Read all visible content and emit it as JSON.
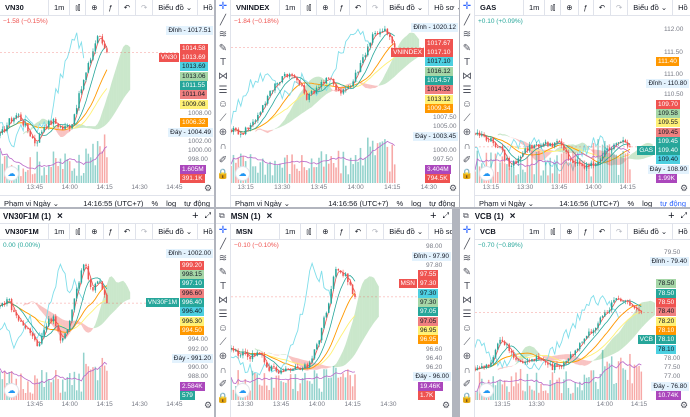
{
  "common": {
    "interval": "1m",
    "chart_menu": "Biểu đồ",
    "profile_menu": "Hồ sơ",
    "range_menu": "Phạm vi Ngày",
    "pct": "%",
    "log": "log",
    "auto": "tự động",
    "add": "+",
    "close": "×",
    "last_candle": "14:16"
  },
  "tools": [
    "crosshair",
    "trend-line",
    "fib",
    "brush",
    "text",
    "pattern",
    "measure",
    "emoji",
    "ruler",
    "zoom",
    "magnet",
    "pencil-lock",
    "lock"
  ],
  "colors": {
    "up": "#26a69a",
    "down": "#ef5350",
    "volume_ma": "#ba68c8"
  },
  "panels": [
    {
      "symbol": "VN30",
      "tab": null,
      "change": "−1.58 (−0.15%)",
      "change_color": "#ef5350",
      "range": [
        996.5,
        1019.5
      ],
      "t_start": "13:30",
      "t_end": "14:47",
      "path": [
        1003,
        1005,
        1006,
        1004,
        1002,
        1004.5,
        1005,
        1004,
        1004.5,
        1009,
        1013,
        1017,
        1014.5
      ],
      "labels": [
        {
          "v": 1017.51,
          "text": "1017.51",
          "kind": "hl",
          "pre": "Đỉnh"
        },
        {
          "v": 1014.58,
          "text": "1014.58",
          "bg": "#ef5350"
        },
        {
          "v": 1013.69,
          "text": "1013.69",
          "bg": "#ef5350",
          "tag": "VN30"
        },
        {
          "v": 1013.69,
          "text": "1013.69",
          "bg": "#4dd0e1"
        },
        {
          "v": 1013.06,
          "text": "1013.06",
          "bg": "#a5d6a7"
        },
        {
          "v": 1011.55,
          "text": "1011.55",
          "bg": "#26a69a"
        },
        {
          "v": 1011.04,
          "text": "1011.04",
          "bg": "#f08080"
        },
        {
          "v": 1009.08,
          "text": "1009.08",
          "bg": "#fff176"
        },
        {
          "v": 1008.0,
          "text": "1008.00",
          "kind": "axis"
        },
        {
          "v": 1006.32,
          "text": "1006.32",
          "bg": "#ff9800"
        },
        {
          "v": 1004.49,
          "text": "1004.49",
          "kind": "hl",
          "pre": "Đáy"
        },
        {
          "v": 1002.0,
          "text": "1002.00",
          "kind": "axis"
        },
        {
          "v": 1000.0,
          "text": "1000.00",
          "kind": "axis"
        },
        {
          "v": 998.0,
          "text": "998.00",
          "kind": "axis"
        }
      ],
      "vol": [
        {
          "text": "1.605M",
          "bg": "#ab47bc"
        },
        {
          "text": "391.1K",
          "bg": "#ef5350"
        }
      ],
      "times": [
        "13:45",
        "14:00",
        "14:15",
        "14:30",
        "14:45"
      ],
      "clock": "14:16:55 (UTC+7)"
    },
    {
      "symbol": "VNINDEX",
      "tab": null,
      "change": "−1.84 (−0.18%)",
      "change_color": "#ef5350",
      "range": [
        995.5,
        1022
      ],
      "t_start": "13:09",
      "t_end": "14:28",
      "path": [
        1004,
        1003.5,
        1005,
        1008,
        1011,
        1013,
        1012,
        1009,
        1011,
        1012,
        1010,
        1011,
        1015,
        1019,
        1020,
        1017
      ],
      "labels": [
        {
          "v": 1020.12,
          "text": "1020.12",
          "kind": "hl",
          "pre": "Đỉnh"
        },
        {
          "v": 1017.67,
          "text": "1017.67",
          "bg": "#ef5350"
        },
        {
          "v": 1017.1,
          "text": "1017.10",
          "bg": "#ef5350",
          "tag": "VNINDEX"
        },
        {
          "v": 1017.1,
          "text": "1017.10",
          "bg": "#4dd0e1"
        },
        {
          "v": 1016.12,
          "text": "1016.12",
          "bg": "#a5d6a7"
        },
        {
          "v": 1014.57,
          "text": "1014.57",
          "bg": "#26a69a"
        },
        {
          "v": 1014.32,
          "text": "1014.32",
          "bg": "#f08080"
        },
        {
          "v": 1013.12,
          "text": "1013.12",
          "bg": "#fff176"
        },
        {
          "v": 1009.34,
          "text": "1009.34",
          "bg": "#ff9800"
        },
        {
          "v": 1007.5,
          "text": "1007.50",
          "kind": "axis"
        },
        {
          "v": 1005.0,
          "text": "1005.00",
          "kind": "axis"
        },
        {
          "v": 1003.45,
          "text": "1003.45",
          "kind": "hl",
          "pre": "Đáy"
        },
        {
          "v": 1000.0,
          "text": "1000.00",
          "kind": "axis"
        },
        {
          "v": 997.5,
          "text": "997.50",
          "kind": "axis"
        }
      ],
      "vol": [
        {
          "text": "3.404M",
          "bg": "#ab47bc"
        },
        {
          "text": "794.5K",
          "bg": "#ef5350"
        }
      ],
      "times": [
        "13:15",
        "13:30",
        "13:45",
        "14:00",
        "14:15",
        "14:30"
      ],
      "clock": "14:16:56 (UTC+7)"
    },
    {
      "symbol": "GAS",
      "tab": null,
      "change": "+0.10 (+0.09%)",
      "change_color": "#26a69a",
      "range": [
        108.6,
        112.3
      ],
      "t_start": "13:08",
      "t_end": "14:27",
      "path": [
        109.7,
        109.6,
        109.4,
        108.95,
        109.3,
        109.45,
        109.45,
        109.5,
        109.1,
        108.95,
        109.0,
        109.3,
        109.55,
        109.4
      ],
      "labels": [
        {
          "v": 112.0,
          "text": "112.00",
          "kind": "axis"
        },
        {
          "v": 111.5,
          "text": "111.50",
          "kind": "axis"
        },
        {
          "v": 111.4,
          "text": "111.40",
          "bg": "#ff9800"
        },
        {
          "v": 111.0,
          "text": "111.00",
          "kind": "axis"
        },
        {
          "v": 110.8,
          "text": "110.80",
          "kind": "hl",
          "pre": "Đỉnh"
        },
        {
          "v": 110.5,
          "text": "110.50",
          "kind": "axis"
        },
        {
          "v": 109.7,
          "text": "109.70",
          "bg": "#ef5350"
        },
        {
          "v": 109.58,
          "text": "109.58",
          "bg": "#a5d6a7"
        },
        {
          "v": 109.55,
          "text": "109.55",
          "bg": "#fff176"
        },
        {
          "v": 109.45,
          "text": "109.45",
          "bg": "#f08080"
        },
        {
          "v": 109.45,
          "text": "109.45",
          "bg": "#26a69a"
        },
        {
          "v": 109.4,
          "text": "109.40",
          "bg": "#26a69a",
          "tag": "GAS"
        },
        {
          "v": 109.4,
          "text": "109.40",
          "bg": "#4dd0e1"
        },
        {
          "v": 108.9,
          "text": "108.90",
          "kind": "hl",
          "pre": "Đáy"
        }
      ],
      "vol": [
        {
          "text": "1.99K",
          "bg": "#ab47bc"
        }
      ],
      "times": [
        "13:15",
        "13:30",
        "13:45",
        "14:00",
        "14:15"
      ],
      "clock": "14:16:56 (UTC+7)"
    },
    {
      "symbol": "VN30F1M",
      "tab": "VN30F1M (1)",
      "change": "0.00 (0.00%)",
      "change_color": "#26a69a",
      "range": [
        985.5,
        1003.5
      ],
      "t_start": "13:30",
      "t_end": "14:47",
      "path": [
        996,
        997,
        995,
        994,
        993,
        991.5,
        994,
        995,
        992,
        993.5,
        998,
        1001,
        998,
        999,
        996.4
      ],
      "labels": [
        {
          "v": 1002.0,
          "text": "1002.00",
          "kind": "hl",
          "pre": "Đỉnh"
        },
        {
          "v": 999.2,
          "text": "999.20",
          "bg": "#ef5350"
        },
        {
          "v": 998.15,
          "text": "998.15",
          "bg": "#a5d6a7"
        },
        {
          "v": 997.1,
          "text": "997.10",
          "bg": "#26a69a"
        },
        {
          "v": 996.6,
          "text": "996.60",
          "bg": "#f08080"
        },
        {
          "v": 996.4,
          "text": "996.40",
          "bg": "#26a69a",
          "tag": "VN30F1M"
        },
        {
          "v": 996.4,
          "text": "996.40",
          "bg": "#4dd0e1"
        },
        {
          "v": 996.3,
          "text": "996.30",
          "bg": "#fff176"
        },
        {
          "v": 994.5,
          "text": "994.50",
          "bg": "#ff9800"
        },
        {
          "v": 994.0,
          "text": "994.00",
          "kind": "axis"
        },
        {
          "v": 992.0,
          "text": "992.00",
          "kind": "axis"
        },
        {
          "v": 991.2,
          "text": "991.20",
          "kind": "hl",
          "pre": "Đáy"
        },
        {
          "v": 990.0,
          "text": "990.00",
          "kind": "axis"
        },
        {
          "v": 988.0,
          "text": "988.00",
          "kind": "axis"
        }
      ],
      "vol": [
        {
          "text": "2.584K",
          "bg": "#ab47bc"
        },
        {
          "text": "579",
          "bg": "#26a69a"
        }
      ],
      "times": [
        "13:45",
        "14:00",
        "14:15",
        "14:30",
        "14:45"
      ],
      "clock": ""
    },
    {
      "symbol": "MSN",
      "tab": "MSN (1)",
      "change": "−0.10 (−0.10%)",
      "change_color": "#ef5350",
      "range": [
        95.85,
        98.1
      ],
      "t_start": "13:24",
      "t_end": "14:42",
      "path": [
        96.55,
        96.5,
        96.45,
        96.5,
        96.3,
        96.25,
        96.3,
        96.3,
        96.35,
        96.6,
        97.1,
        97.7,
        97.6,
        97.3
      ],
      "labels": [
        {
          "v": 98.0,
          "text": "98.00",
          "kind": "axis"
        },
        {
          "v": 97.9,
          "text": "97.90",
          "kind": "hl",
          "pre": "Đỉnh"
        },
        {
          "v": 97.8,
          "text": "97.80",
          "kind": "axis"
        },
        {
          "v": 97.55,
          "text": "97.55",
          "bg": "#ef5350"
        },
        {
          "v": 97.3,
          "text": "97.30",
          "bg": "#ef5350",
          "tag": "MSN"
        },
        {
          "v": 97.3,
          "text": "97.30",
          "bg": "#4dd0e1"
        },
        {
          "v": 97.3,
          "text": "97.30",
          "bg": "#a5d6a7"
        },
        {
          "v": 97.05,
          "text": "97.05",
          "bg": "#26a69a"
        },
        {
          "v": 97.05,
          "text": "97.05",
          "bg": "#f08080"
        },
        {
          "v": 96.95,
          "text": "96.95",
          "bg": "#fff176"
        },
        {
          "v": 96.95,
          "text": "96.95",
          "bg": "#ff9800"
        },
        {
          "v": 96.6,
          "text": "96.60",
          "kind": "axis"
        },
        {
          "v": 96.4,
          "text": "96.40",
          "kind": "axis"
        },
        {
          "v": 96.2,
          "text": "96.20",
          "kind": "axis"
        },
        {
          "v": 96.0,
          "text": "96.00",
          "kind": "hl",
          "pre": "Đáy"
        }
      ],
      "vol": [
        {
          "text": "19.46K",
          "bg": "#ab47bc"
        },
        {
          "text": "1.7K",
          "bg": "#ef5350"
        }
      ],
      "times": [
        "13:30",
        "13:45",
        "14:00",
        "14:15",
        "14:30"
      ],
      "clock": ""
    },
    {
      "symbol": "VCB",
      "tab": "VCB (1)",
      "change": "−0.70 (−0.89%)",
      "change_color": "#26a69a",
      "range": [
        76.55,
        79.75
      ],
      "t_start": "13:03",
      "t_end": "14:22",
      "path": [
        77.2,
        77.2,
        77.8,
        77.4,
        77.3,
        77.4,
        77.2,
        77.3,
        77.6,
        77.9,
        78.2,
        78.6,
        78.5,
        78.3
      ],
      "labels": [
        {
          "v": 79.5,
          "text": "79.50",
          "kind": "axis"
        },
        {
          "v": 79.4,
          "text": "79.40",
          "kind": "hl",
          "pre": "Đỉnh"
        },
        {
          "v": 78.5,
          "text": "78.50",
          "bg": "#a5d6a7"
        },
        {
          "v": 78.5,
          "text": "78.50",
          "bg": "#26a69a"
        },
        {
          "v": 78.5,
          "text": "78.50",
          "bg": "#ef5350"
        },
        {
          "v": 78.4,
          "text": "78.40",
          "bg": "#f08080"
        },
        {
          "v": 78.2,
          "text": "78.20",
          "bg": "#fff176"
        },
        {
          "v": 78.1,
          "text": "78.10",
          "bg": "#ff9800"
        },
        {
          "v": 78.1,
          "text": "78.10",
          "bg": "#26a69a",
          "tag": "VCB"
        },
        {
          "v": 78.1,
          "text": "78.10",
          "bg": "#4dd0e1"
        },
        {
          "v": 78.0,
          "text": "78.00",
          "kind": "axis"
        },
        {
          "v": 77.5,
          "text": "77.50",
          "kind": "axis"
        },
        {
          "v": 77.0,
          "text": "77.00",
          "kind": "axis"
        },
        {
          "v": 76.8,
          "text": "76.80",
          "kind": "hl",
          "pre": "Đáy"
        }
      ],
      "vol": [
        {
          "text": "10.74K",
          "bg": "#ab47bc"
        }
      ],
      "times": [
        "13:15",
        "13:30",
        "14:00",
        "14:15"
      ],
      "clock": ""
    }
  ]
}
